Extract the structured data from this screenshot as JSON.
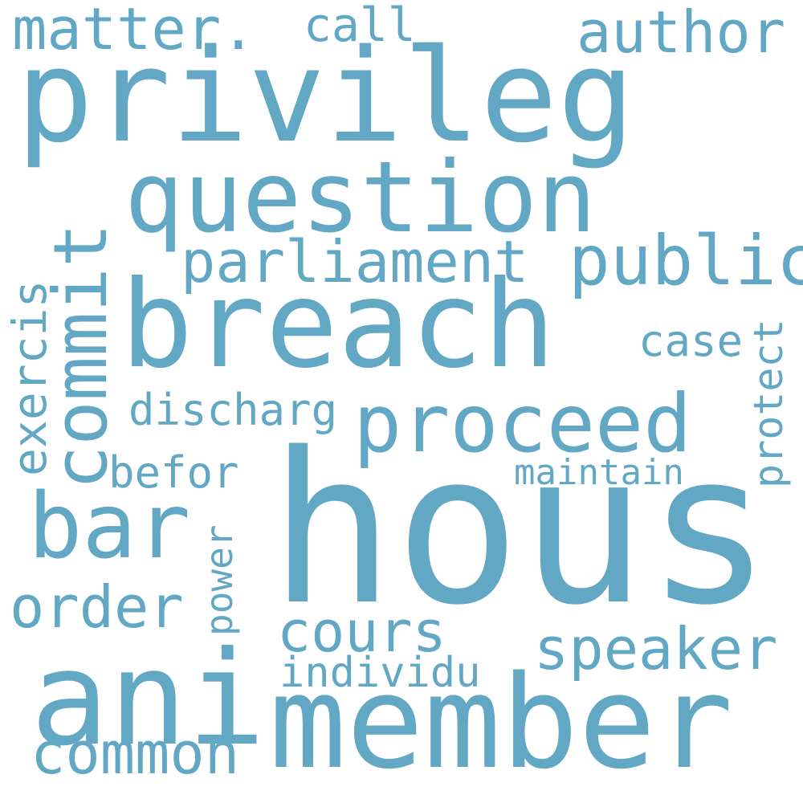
{
  "words_color": "#62a8c4",
  "background_color": "#ffffff",
  "words": [
    "privileg",
    "hous",
    "breach",
    "question",
    "member",
    "ani",
    "proceed",
    "commit",
    "bar",
    "parliament",
    "public",
    "cours",
    "speaker",
    "order",
    "common",
    "author",
    "matter.",
    "call",
    "exercis",
    "discharg",
    "befor",
    "case",
    "protect",
    "maintain",
    "power",
    "individu"
  ]
}
